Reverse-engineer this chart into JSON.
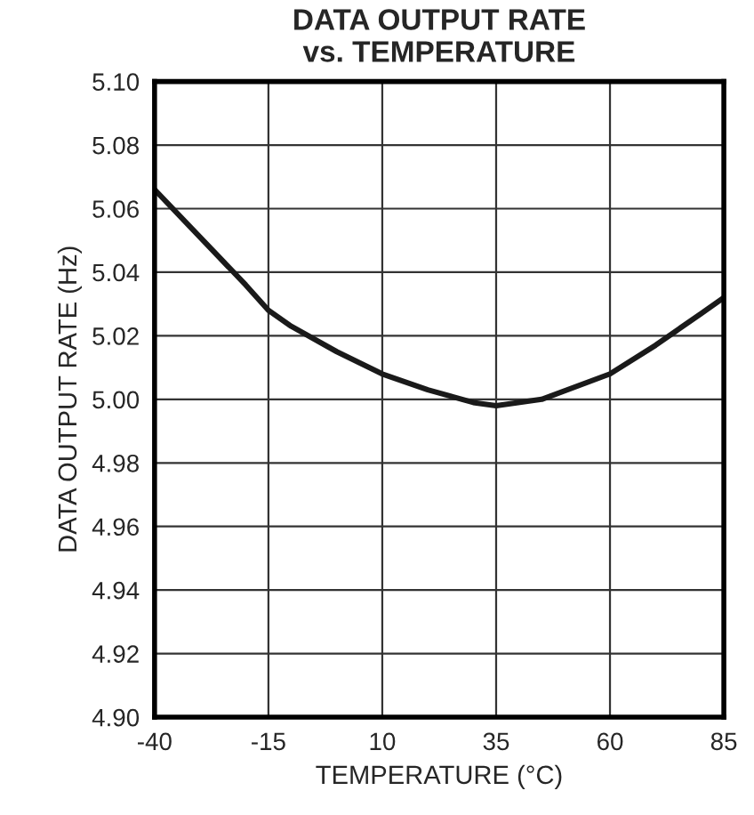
{
  "chart_data": {
    "type": "line",
    "title": "DATA OUTPUT RATE\nvs. TEMPERATURE",
    "xlabel": "TEMPERATURE (°C)",
    "ylabel": "DATA OUTPUT RATE (Hz)",
    "xlim": [
      -40,
      85
    ],
    "xticks": [
      -40,
      -15,
      10,
      35,
      60,
      85
    ],
    "ylim": [
      4.9,
      5.1
    ],
    "yticks": [
      {
        "value": 4.9,
        "label": "4.90"
      },
      {
        "value": 4.92,
        "label": "4.92"
      },
      {
        "value": 4.94,
        "label": "4.94"
      },
      {
        "value": 4.96,
        "label": "4.96"
      },
      {
        "value": 4.98,
        "label": "4.98"
      },
      {
        "value": 5.0,
        "label": "5.00"
      },
      {
        "value": 5.02,
        "label": "5.02"
      },
      {
        "value": 5.04,
        "label": "5.04"
      },
      {
        "value": 5.06,
        "label": "5.06"
      },
      {
        "value": 5.08,
        "label": "5.08"
      },
      {
        "value": 5.1,
        "label": "5.10"
      }
    ],
    "grid": true,
    "marker": "none",
    "line_style": "solid",
    "series": [
      {
        "color": "#1a1a1a",
        "x": [
          -40,
          -30,
          -20,
          -15,
          -10,
          0,
          10,
          20,
          30,
          35,
          45,
          60,
          70,
          80,
          85
        ],
        "values": [
          5.066,
          5.051,
          5.036,
          5.028,
          5.023,
          5.015,
          5.008,
          5.003,
          4.999,
          4.998,
          5.0,
          5.008,
          5.017,
          5.027,
          5.032
        ]
      }
    ]
  }
}
